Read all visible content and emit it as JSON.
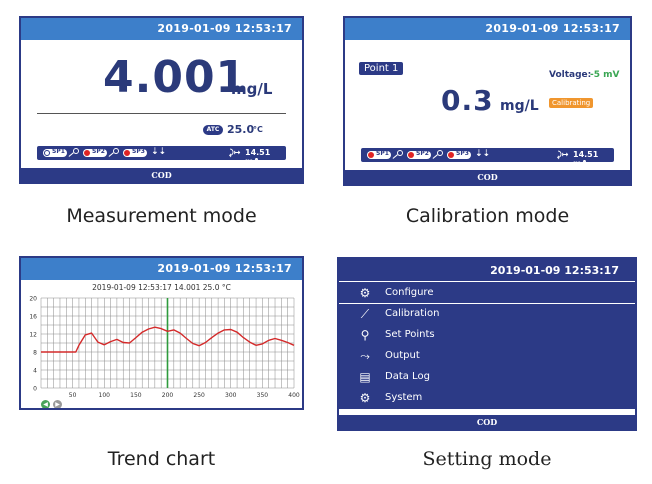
{
  "measurement": {
    "datetime": "2019-01-09  12:53:17",
    "value": "4.001",
    "unit": "mg/L",
    "atc_label": "ATC",
    "temperature": "25.0",
    "temp_unit": "°C",
    "sp1": "SP1",
    "sp2": "SP2",
    "sp3": "SP3",
    "current": "14.51 mA",
    "footer": "COD",
    "caption": "Measurement mode"
  },
  "calibration": {
    "datetime": "2019-01-09  12:53:17",
    "point": "Point 1",
    "voltage_label": "Voltage:",
    "voltage_value": "-5 mV",
    "value": "0.3",
    "unit": "mg/L",
    "status": "Calibrating",
    "sp1": "SP1",
    "sp2": "SP2",
    "sp3": "SP3",
    "current": "14.51 mA",
    "footer": "COD",
    "caption": "Calibration mode"
  },
  "trend": {
    "datetime": "2019-01-09  12:53:17",
    "info": "2019-01-09  12:53:17  14.001  25.0 °C",
    "caption": "Trend chart",
    "colors": {
      "line": "#d42a2a",
      "cursor": "#2e9b3d",
      "grid": "#8a8a8a"
    }
  },
  "chart_data": {
    "type": "line",
    "x": [
      0,
      10,
      20,
      30,
      40,
      50,
      55,
      60,
      70,
      80,
      90,
      100,
      110,
      120,
      130,
      140,
      150,
      160,
      170,
      180,
      190,
      200,
      210,
      220,
      230,
      240,
      250,
      260,
      270,
      280,
      290,
      300,
      310,
      320,
      330,
      340,
      350,
      360,
      370,
      380,
      390,
      400
    ],
    "series": [
      {
        "values": [
          8,
          8,
          8,
          8,
          8,
          8,
          8,
          9.5,
          11.8,
          12.2,
          10.2,
          9.6,
          10.3,
          10.8,
          10.1,
          10.0,
          11.2,
          12.4,
          13.1,
          13.5,
          13.2,
          12.6,
          12.9,
          12.2,
          11.0,
          9.9,
          9.4,
          10.1,
          11.2,
          12.2,
          12.9,
          13.0,
          12.4,
          11.2,
          10.2,
          9.5,
          9.8,
          10.6,
          11.0,
          10.6,
          10.1,
          9.5
        ]
      }
    ],
    "xlim": [
      0,
      400
    ],
    "ylim": [
      0,
      20
    ],
    "xticks": [
      "50",
      "100",
      "150",
      "200",
      "250",
      "300",
      "350",
      "400"
    ],
    "yticks": [
      "0",
      "4",
      "8",
      "12",
      "16",
      "20"
    ],
    "cursor_x": 200,
    "grid": true
  },
  "settings": {
    "datetime": "2019-01-09  12:53:17",
    "items": [
      {
        "label": "Configure",
        "icon": "gear-icon"
      },
      {
        "label": "Calibration",
        "icon": "calibration-icon"
      },
      {
        "label": "Set Points",
        "icon": "setpoint-icon"
      },
      {
        "label": "Output",
        "icon": "output-icon"
      },
      {
        "label": "Data Log",
        "icon": "datalog-icon"
      },
      {
        "label": "System",
        "icon": "system-icon"
      }
    ],
    "footer": "COD",
    "caption": "Setting mode"
  }
}
